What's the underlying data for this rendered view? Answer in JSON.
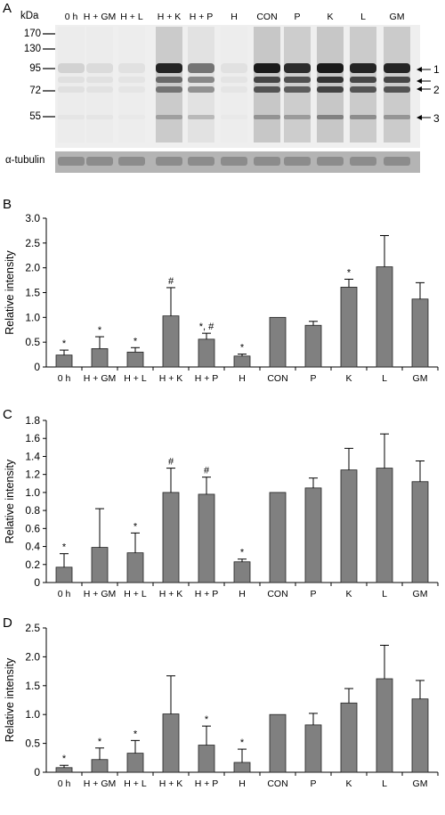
{
  "panels": {
    "A": "A",
    "B": "B",
    "C": "C",
    "D": "D"
  },
  "blot": {
    "unit_label": "kDa",
    "lanes": [
      "0 h",
      "H + GM",
      "H + L",
      "H + K",
      "H + P",
      "H",
      "CON",
      "P",
      "K",
      "L",
      "GM"
    ],
    "mw_markers": [
      "170",
      "130",
      "95",
      "72",
      "55"
    ],
    "band_labels": [
      "1",
      "2",
      "3"
    ],
    "loading_control": "α-tubulin",
    "colors": {
      "membrane": "#efefef",
      "band": "#1a1a1a",
      "tubulin_strip": "#8c8c8c"
    }
  },
  "chart_data": [
    {
      "type": "bar",
      "panel": "B",
      "ylabel": "Relative intensity",
      "ylim": [
        0,
        3.0
      ],
      "yticks": [
        "0",
        "0.5",
        "1.0",
        "1.5",
        "2.0",
        "2.5",
        "3.0"
      ],
      "categories": [
        "0 h",
        "H + GM",
        "H + L",
        "H + K",
        "H + P",
        "H",
        "CON",
        "P",
        "K",
        "L",
        "GM"
      ],
      "values": [
        0.24,
        0.37,
        0.3,
        1.03,
        0.56,
        0.22,
        1.0,
        0.84,
        1.61,
        2.02,
        1.37
      ],
      "errors": [
        0.1,
        0.24,
        0.09,
        0.57,
        0.12,
        0.04,
        0,
        0.08,
        0.16,
        0.63,
        0.33
      ],
      "annotations": [
        "*",
        "*",
        "*",
        "#",
        "*, #",
        "*",
        "",
        "",
        "*",
        "",
        ""
      ],
      "bar_color": "#808080"
    },
    {
      "type": "bar",
      "panel": "C",
      "ylabel": "Relative intensity",
      "ylim": [
        0,
        1.8
      ],
      "yticks": [
        "0",
        "0.2",
        "0.4",
        "0.6",
        "0.8",
        "1.0",
        "1.2",
        "1.4",
        "1.6",
        "1.8"
      ],
      "categories": [
        "0 h",
        "H + GM",
        "H + L",
        "H + K",
        "H + P",
        "H",
        "CON",
        "P",
        "K",
        "L",
        "GM"
      ],
      "values": [
        0.17,
        0.39,
        0.33,
        1.0,
        0.98,
        0.23,
        1.0,
        1.05,
        1.25,
        1.27,
        1.12
      ],
      "errors": [
        0.15,
        0.43,
        0.22,
        0.27,
        0.19,
        0.03,
        0,
        0.11,
        0.24,
        0.38,
        0.23
      ],
      "annotations": [
        "*",
        "",
        "*",
        "#",
        "#",
        "*",
        "",
        "",
        "",
        "",
        ""
      ],
      "bar_color": "#808080"
    },
    {
      "type": "bar",
      "panel": "D",
      "ylabel": "Relative intensity",
      "ylim": [
        0,
        2.5
      ],
      "yticks": [
        "0",
        "0.5",
        "1.0",
        "1.5",
        "2.0",
        "2.5"
      ],
      "categories": [
        "0 h",
        "H + GM",
        "H + L",
        "H + K",
        "H + P",
        "H",
        "CON",
        "P",
        "K",
        "L",
        "GM"
      ],
      "values": [
        0.08,
        0.22,
        0.33,
        1.01,
        0.47,
        0.17,
        1.0,
        0.82,
        1.2,
        1.62,
        1.27
      ],
      "errors": [
        0.04,
        0.2,
        0.22,
        0.66,
        0.33,
        0.23,
        0,
        0.2,
        0.25,
        0.58,
        0.32
      ],
      "annotations": [
        "*",
        "*",
        "*",
        "",
        "*",
        "*",
        "",
        "",
        "",
        "",
        ""
      ],
      "bar_color": "#808080"
    }
  ]
}
